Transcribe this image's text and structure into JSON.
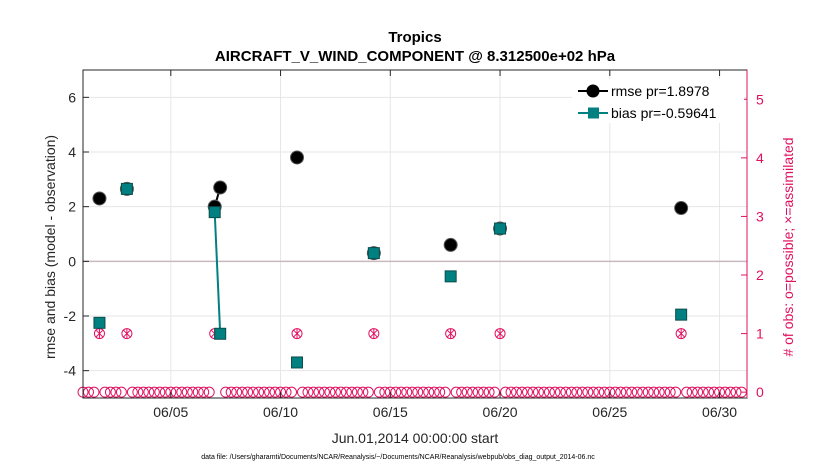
{
  "chart_data": {
    "type": "line",
    "title": "Tropics",
    "subtitle": "AIRCRAFT_V_WIND_COMPONENT @ 8.312500e+02 hPa",
    "xlabel": "Jun.01,2014 00:00:00 start",
    "ylabel": "rmse and bias (model - observation)",
    "y2label": "# of obs: o=possible; ×=assimilated",
    "footnote": "data file: /Users/gharamti/Documents/NCAR/Reanalysis/~/Documents/NCAR/Reanalysis/webpub/obs_diag_output_2014-06.nc",
    "xlim": [
      1.0,
      31.25
    ],
    "ylim": [
      -5,
      7
    ],
    "y2lim": [
      -0.1,
      5.5
    ],
    "x_ticks": [
      5,
      10,
      15,
      20,
      25,
      30
    ],
    "x_tick_labels": [
      "06/05",
      "06/10",
      "06/15",
      "06/20",
      "06/25",
      "06/30"
    ],
    "y_ticks": [
      -4,
      -2,
      0,
      2,
      4,
      6
    ],
    "y_tick_labels": [
      "-4",
      "-2",
      "0",
      "2",
      "4",
      "6"
    ],
    "y2_ticks": [
      0,
      1,
      2,
      3,
      4,
      5
    ],
    "y2_tick_labels": [
      "0",
      "1",
      "2",
      "3",
      "4",
      "5"
    ],
    "zero_line": 0,
    "legend": {
      "location": "top-right",
      "entries": [
        "rmse pr=1.8978",
        "bias pr=-0.59641"
      ]
    },
    "series": [
      {
        "name": "rmse pr=1.8978",
        "color": "#000000",
        "marker": "circle",
        "points": [
          [
            1.75,
            2.3
          ],
          [
            3.0,
            2.65
          ],
          [
            7.0,
            2.0
          ],
          [
            7.25,
            2.7
          ],
          [
            10.75,
            3.8
          ],
          [
            14.25,
            0.3
          ],
          [
            17.75,
            0.6
          ],
          [
            20.0,
            1.2
          ],
          [
            28.25,
            1.95
          ]
        ],
        "segments": [
          [
            2,
            3
          ]
        ]
      },
      {
        "name": "bias pr=-0.59641",
        "color": "#008080",
        "marker": "square",
        "points": [
          [
            1.75,
            -2.25
          ],
          [
            3.0,
            2.65
          ],
          [
            7.0,
            1.8
          ],
          [
            7.25,
            -2.65
          ],
          [
            10.75,
            -3.7
          ],
          [
            14.25,
            0.3
          ],
          [
            17.75,
            -0.55
          ],
          [
            20.0,
            1.2
          ],
          [
            28.25,
            -1.95
          ]
        ],
        "segments": [
          [
            2,
            3
          ]
        ]
      },
      {
        "name": "obs count (possible / assimilated)",
        "color": "#e0115f",
        "axis": "right",
        "x_start": 1.0,
        "x_step": 0.25,
        "count": 121,
        "nonzero": [
          [
            1.75,
            1
          ],
          [
            3.0,
            1
          ],
          [
            7.0,
            1
          ],
          [
            7.25,
            1
          ],
          [
            10.75,
            1
          ],
          [
            14.25,
            1
          ],
          [
            17.75,
            1
          ],
          [
            20.0,
            1
          ],
          [
            28.25,
            1
          ]
        ]
      }
    ],
    "colors": {
      "axis": "#262626",
      "right_axis": "#e0115f",
      "grid": "#e6e6e6",
      "zero_line": "#c8b8c0"
    }
  }
}
